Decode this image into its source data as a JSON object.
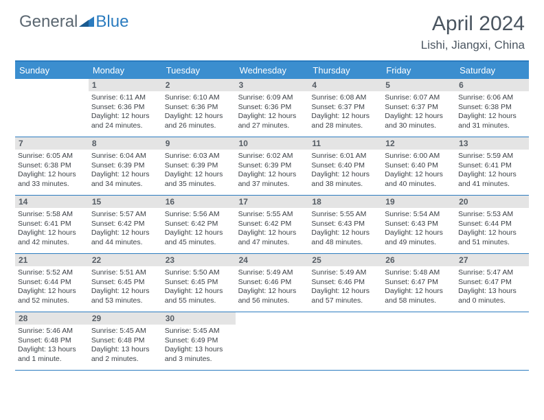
{
  "logo": {
    "text1": "General",
    "text2": "Blue",
    "color1": "#5a6670",
    "color2": "#2a7bbf"
  },
  "title": "April 2024",
  "location": "Lishi, Jiangxi, China",
  "header_bg": "#3b8ecf",
  "border_color": "#2a7bbf",
  "daynum_bg": "#e4e4e4",
  "days": [
    "Sunday",
    "Monday",
    "Tuesday",
    "Wednesday",
    "Thursday",
    "Friday",
    "Saturday"
  ],
  "weeks": [
    [
      {
        "n": "",
        "empty": true
      },
      {
        "n": "1",
        "sr": "6:11 AM",
        "ss": "6:36 PM",
        "dl": "12 hours and 24 minutes."
      },
      {
        "n": "2",
        "sr": "6:10 AM",
        "ss": "6:36 PM",
        "dl": "12 hours and 26 minutes."
      },
      {
        "n": "3",
        "sr": "6:09 AM",
        "ss": "6:36 PM",
        "dl": "12 hours and 27 minutes."
      },
      {
        "n": "4",
        "sr": "6:08 AM",
        "ss": "6:37 PM",
        "dl": "12 hours and 28 minutes."
      },
      {
        "n": "5",
        "sr": "6:07 AM",
        "ss": "6:37 PM",
        "dl": "12 hours and 30 minutes."
      },
      {
        "n": "6",
        "sr": "6:06 AM",
        "ss": "6:38 PM",
        "dl": "12 hours and 31 minutes."
      }
    ],
    [
      {
        "n": "7",
        "sr": "6:05 AM",
        "ss": "6:38 PM",
        "dl": "12 hours and 33 minutes."
      },
      {
        "n": "8",
        "sr": "6:04 AM",
        "ss": "6:39 PM",
        "dl": "12 hours and 34 minutes."
      },
      {
        "n": "9",
        "sr": "6:03 AM",
        "ss": "6:39 PM",
        "dl": "12 hours and 35 minutes."
      },
      {
        "n": "10",
        "sr": "6:02 AM",
        "ss": "6:39 PM",
        "dl": "12 hours and 37 minutes."
      },
      {
        "n": "11",
        "sr": "6:01 AM",
        "ss": "6:40 PM",
        "dl": "12 hours and 38 minutes."
      },
      {
        "n": "12",
        "sr": "6:00 AM",
        "ss": "6:40 PM",
        "dl": "12 hours and 40 minutes."
      },
      {
        "n": "13",
        "sr": "5:59 AM",
        "ss": "6:41 PM",
        "dl": "12 hours and 41 minutes."
      }
    ],
    [
      {
        "n": "14",
        "sr": "5:58 AM",
        "ss": "6:41 PM",
        "dl": "12 hours and 42 minutes."
      },
      {
        "n": "15",
        "sr": "5:57 AM",
        "ss": "6:42 PM",
        "dl": "12 hours and 44 minutes."
      },
      {
        "n": "16",
        "sr": "5:56 AM",
        "ss": "6:42 PM",
        "dl": "12 hours and 45 minutes."
      },
      {
        "n": "17",
        "sr": "5:55 AM",
        "ss": "6:42 PM",
        "dl": "12 hours and 47 minutes."
      },
      {
        "n": "18",
        "sr": "5:55 AM",
        "ss": "6:43 PM",
        "dl": "12 hours and 48 minutes."
      },
      {
        "n": "19",
        "sr": "5:54 AM",
        "ss": "6:43 PM",
        "dl": "12 hours and 49 minutes."
      },
      {
        "n": "20",
        "sr": "5:53 AM",
        "ss": "6:44 PM",
        "dl": "12 hours and 51 minutes."
      }
    ],
    [
      {
        "n": "21",
        "sr": "5:52 AM",
        "ss": "6:44 PM",
        "dl": "12 hours and 52 minutes."
      },
      {
        "n": "22",
        "sr": "5:51 AM",
        "ss": "6:45 PM",
        "dl": "12 hours and 53 minutes."
      },
      {
        "n": "23",
        "sr": "5:50 AM",
        "ss": "6:45 PM",
        "dl": "12 hours and 55 minutes."
      },
      {
        "n": "24",
        "sr": "5:49 AM",
        "ss": "6:46 PM",
        "dl": "12 hours and 56 minutes."
      },
      {
        "n": "25",
        "sr": "5:49 AM",
        "ss": "6:46 PM",
        "dl": "12 hours and 57 minutes."
      },
      {
        "n": "26",
        "sr": "5:48 AM",
        "ss": "6:47 PM",
        "dl": "12 hours and 58 minutes."
      },
      {
        "n": "27",
        "sr": "5:47 AM",
        "ss": "6:47 PM",
        "dl": "13 hours and 0 minutes."
      }
    ],
    [
      {
        "n": "28",
        "sr": "5:46 AM",
        "ss": "6:48 PM",
        "dl": "13 hours and 1 minute."
      },
      {
        "n": "29",
        "sr": "5:45 AM",
        "ss": "6:48 PM",
        "dl": "13 hours and 2 minutes."
      },
      {
        "n": "30",
        "sr": "5:45 AM",
        "ss": "6:49 PM",
        "dl": "13 hours and 3 minutes."
      },
      {
        "n": "",
        "empty": true
      },
      {
        "n": "",
        "empty": true
      },
      {
        "n": "",
        "empty": true
      },
      {
        "n": "",
        "empty": true
      }
    ]
  ],
  "labels": {
    "sunrise": "Sunrise:",
    "sunset": "Sunset:",
    "daylight": "Daylight:"
  }
}
